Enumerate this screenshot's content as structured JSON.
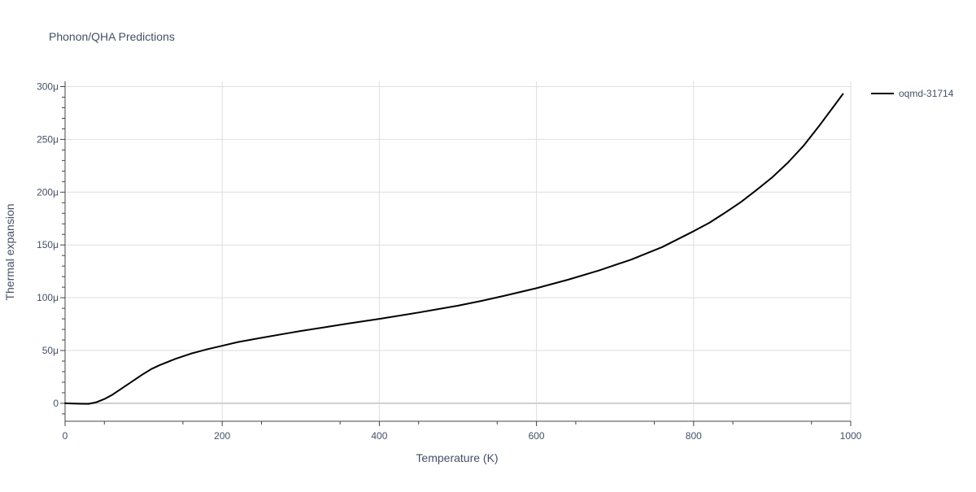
{
  "chart_data": {
    "type": "line",
    "title": "Phonon/QHA Predictions",
    "xlabel": "Temperature (K)",
    "ylabel": "Thermal expansion",
    "xlim": [
      0,
      1000
    ],
    "ylim": [
      -17,
      305
    ],
    "x_ticks": [
      0,
      200,
      400,
      600,
      800,
      1000
    ],
    "x_tick_labels": [
      "0",
      "200",
      "400",
      "600",
      "800",
      "1000"
    ],
    "y_ticks": [
      0,
      50,
      100,
      150,
      200,
      250,
      300
    ],
    "y_tick_labels": [
      "0",
      "50μ",
      "100μ",
      "150μ",
      "200μ",
      "250μ",
      "300μ"
    ],
    "y_unit_scale": "1e-6",
    "grid": true,
    "legend_position": "top-right",
    "series": [
      {
        "name": "oqmd-31714",
        "color": "#000000",
        "x": [
          0,
          10,
          20,
          30,
          40,
          50,
          60,
          70,
          80,
          90,
          100,
          110,
          120,
          130,
          140,
          150,
          160,
          170,
          180,
          200,
          220,
          250,
          280,
          300,
          330,
          360,
          400,
          450,
          500,
          530,
          560,
          600,
          640,
          680,
          720,
          760,
          800,
          820,
          840,
          860,
          880,
          900,
          920,
          940,
          960,
          980,
          990
        ],
        "y": [
          0,
          -0.2,
          -0.4,
          -0.5,
          1,
          4,
          8,
          13,
          18,
          23,
          28,
          32.5,
          36,
          39,
          42,
          44.5,
          47,
          49,
          51,
          54.5,
          58,
          62,
          66,
          68.5,
          72,
          75.5,
          80,
          86,
          92.5,
          97,
          102,
          109,
          117,
          126,
          136,
          148,
          163,
          171,
          180.5,
          190.5,
          202,
          214,
          228,
          244,
          263,
          283,
          293
        ]
      }
    ]
  }
}
